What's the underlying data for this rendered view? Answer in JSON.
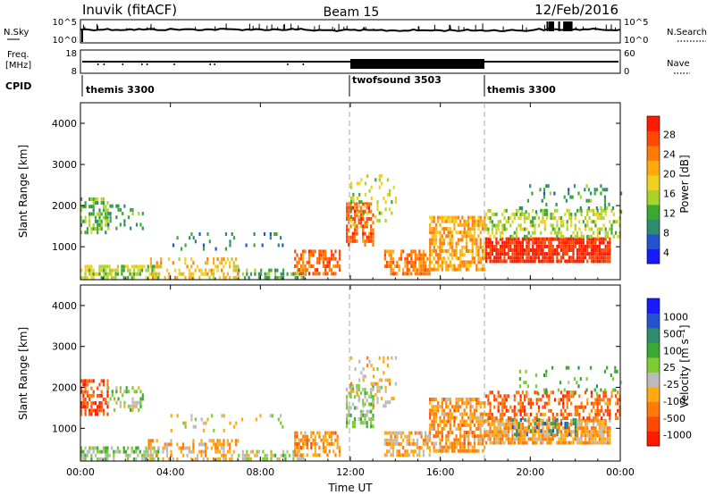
{
  "header": {
    "station": "Inuvik (fitACF)",
    "beam": "Beam 15",
    "date": "12/Feb/2016"
  },
  "nsky_panel": {
    "left_label": "N.Sky",
    "left_ticks": [
      "10^5",
      "10^0"
    ],
    "right_ticks": [
      "10^5",
      "10^0"
    ],
    "right_label": "N.Search"
  },
  "freq_panel": {
    "left_label_1": "Freq.",
    "left_label_2": "[MHz]",
    "left_ticks": [
      "18",
      "8"
    ],
    "right_ticks": [
      "60",
      "0"
    ],
    "right_label": "Nave"
  },
  "cpid_panel": {
    "label": "CPID",
    "segments": [
      {
        "name": "themis 3300",
        "start_hour": 0,
        "end_hour": 12
      },
      {
        "name": "twofsound 3503",
        "start_hour": 12,
        "end_hour": 18
      },
      {
        "name": "themis 3300",
        "start_hour": 18,
        "end_hour": 24
      }
    ]
  },
  "chart_data": [
    {
      "type": "heatmap",
      "title": "",
      "xlabel": "",
      "ylabel": "Slant Range [km]",
      "xlim": [
        0,
        24
      ],
      "ylim": [
        200,
        4500
      ],
      "ytick_values": [
        1000,
        2000,
        3000,
        4000
      ],
      "yticks": [
        "1000",
        "2000",
        "3000",
        "4000"
      ],
      "xticks_hours": [
        0,
        4,
        8,
        12,
        16,
        20,
        24
      ],
      "colorbar": {
        "label": "Power [dB]",
        "ticks": [
          "4",
          "8",
          "12",
          "16",
          "20",
          "24",
          "28"
        ],
        "range": [
          0,
          30
        ],
        "colors": [
          "#1a1aff",
          "#2255cc",
          "#2d8c6e",
          "#3aa832",
          "#a8d42a",
          "#f0d020",
          "#ffaa10",
          "#ff7a08",
          "#ff4a05",
          "#ff1a00"
        ]
      },
      "scatter_regions": [
        {
          "h0": 0.0,
          "h1": 1.2,
          "r0": 1300,
          "r1": 2200,
          "v": 12,
          "d": 0.55
        },
        {
          "h0": 1.2,
          "h1": 2.8,
          "r0": 1400,
          "r1": 2000,
          "v": 9,
          "d": 0.25
        },
        {
          "h0": 0.0,
          "h1": 3.5,
          "r0": 200,
          "r1": 500,
          "v": 14,
          "d": 0.6
        },
        {
          "h0": 3.0,
          "h1": 7.0,
          "r0": 200,
          "r1": 700,
          "v": 18,
          "d": 0.35
        },
        {
          "h0": 4.0,
          "h1": 9.0,
          "r0": 900,
          "r1": 1300,
          "v": 8,
          "d": 0.12
        },
        {
          "h0": 7.0,
          "h1": 10.0,
          "r0": 200,
          "r1": 450,
          "v": 10,
          "d": 0.45
        },
        {
          "h0": 9.5,
          "h1": 11.5,
          "r0": 300,
          "r1": 900,
          "v": 24,
          "d": 0.6
        },
        {
          "h0": 11.8,
          "h1": 13.0,
          "r0": 1000,
          "r1": 2000,
          "v": 24,
          "d": 0.6
        },
        {
          "h0": 12.0,
          "h1": 14.0,
          "r0": 1500,
          "r1": 2700,
          "v": 14,
          "d": 0.22
        },
        {
          "h0": 13.5,
          "h1": 15.5,
          "r0": 300,
          "r1": 900,
          "v": 22,
          "d": 0.65
        },
        {
          "h0": 15.5,
          "h1": 18.0,
          "r0": 400,
          "r1": 1700,
          "v": 20,
          "d": 0.65
        },
        {
          "h0": 18.0,
          "h1": 23.5,
          "r0": 600,
          "r1": 1200,
          "v": 28,
          "d": 0.85
        },
        {
          "h0": 18.0,
          "h1": 24.0,
          "r0": 1200,
          "r1": 1900,
          "v": 14,
          "d": 0.45
        },
        {
          "h0": 19.5,
          "h1": 24.0,
          "r0": 1800,
          "r1": 2500,
          "v": 9,
          "d": 0.12
        }
      ]
    },
    {
      "type": "heatmap",
      "title": "",
      "xlabel": "Time UT",
      "ylabel": "Slant Range [km]",
      "xlim": [
        0,
        24
      ],
      "ylim": [
        200,
        4500
      ],
      "ytick_values": [
        1000,
        2000,
        3000,
        4000
      ],
      "yticks": [
        "1000",
        "2000",
        "3000",
        "4000"
      ],
      "xticks": [
        "00:00",
        "04:00",
        "08:00",
        "12:00",
        "16:00",
        "20:00",
        "00:00"
      ],
      "xticks_hours": [
        0,
        4,
        8,
        12,
        16,
        20,
        24
      ],
      "colorbar": {
        "label": "Velocity [m s^-1]",
        "ticks": [
          "1000",
          "500",
          "100",
          "25",
          "-25",
          "-100",
          "-500",
          "-1000"
        ],
        "range": [
          -1000,
          1000
        ],
        "colors": [
          "#ff1a00",
          "#ff4a05",
          "#ff7a08",
          "#ffaa10",
          "#bbbbbb",
          "#7ccc32",
          "#3aa832",
          "#2d8c6e",
          "#2255cc",
          "#1a1aff"
        ]
      },
      "scatter_regions": [
        {
          "h0": 0.0,
          "h1": 1.2,
          "r0": 1300,
          "r1": 2200,
          "v": -700,
          "d": 0.6
        },
        {
          "h0": 1.2,
          "h1": 2.8,
          "r0": 1400,
          "r1": 2000,
          "v": 0,
          "d": 0.25
        },
        {
          "h0": 0.0,
          "h1": 3.5,
          "r0": 200,
          "r1": 500,
          "v": 60,
          "d": 0.55
        },
        {
          "h0": 3.0,
          "h1": 7.0,
          "r0": 200,
          "r1": 700,
          "v": -300,
          "d": 0.35
        },
        {
          "h0": 4.0,
          "h1": 9.0,
          "r0": 900,
          "r1": 1300,
          "v": -150,
          "d": 0.12
        },
        {
          "h0": 7.0,
          "h1": 10.0,
          "r0": 200,
          "r1": 450,
          "v": 0,
          "d": 0.45
        },
        {
          "h0": 9.5,
          "h1": 11.5,
          "r0": 300,
          "r1": 900,
          "v": -400,
          "d": 0.55
        },
        {
          "h0": 11.8,
          "h1": 13.0,
          "r0": 1000,
          "r1": 2000,
          "v": 50,
          "d": 0.55
        },
        {
          "h0": 12.0,
          "h1": 14.0,
          "r0": 1500,
          "r1": 2700,
          "v": -200,
          "d": 0.2
        },
        {
          "h0": 13.5,
          "h1": 15.5,
          "r0": 300,
          "r1": 900,
          "v": -300,
          "d": 0.6
        },
        {
          "h0": 15.5,
          "h1": 18.0,
          "r0": 400,
          "r1": 1700,
          "v": -400,
          "d": 0.65
        },
        {
          "h0": 18.0,
          "h1": 23.5,
          "r0": 600,
          "r1": 1200,
          "v": -350,
          "d": 0.8
        },
        {
          "h0": 19.0,
          "h1": 22.0,
          "r0": 800,
          "r1": 1200,
          "v": 500,
          "d": 0.3
        },
        {
          "h0": 18.0,
          "h1": 24.0,
          "r0": 1200,
          "r1": 1900,
          "v": -600,
          "d": 0.45
        },
        {
          "h0": 19.5,
          "h1": 24.0,
          "r0": 1800,
          "r1": 2500,
          "v": 200,
          "d": 0.12
        }
      ]
    }
  ]
}
